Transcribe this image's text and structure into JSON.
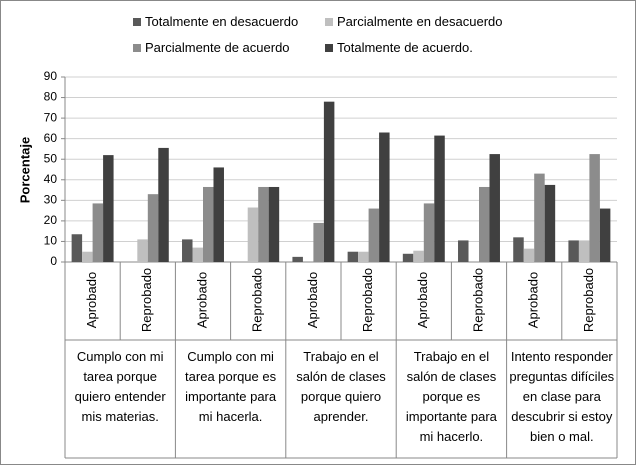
{
  "chart_data": {
    "type": "bar",
    "y_label": "Porcentaje",
    "groups": [
      {
        "label": "Cumplo con mi tarea porque quiero entender mis materias.",
        "categories": [
          "Aprobado",
          "Reprobado"
        ]
      },
      {
        "label": "Cumplo con mi tarea porque es importante para mi hacerla.",
        "categories": [
          "Aprobado",
          "Reprobado"
        ]
      },
      {
        "label": "Trabajo en el salón de clases porque quiero aprender.",
        "categories": [
          "Aprobado",
          "Reprobado"
        ]
      },
      {
        "label": "Trabajo en el salón de clases porque es importante para mi hacerlo.",
        "categories": [
          "Aprobado",
          "Reprobado"
        ]
      },
      {
        "label": "Intento responder preguntas difíciles en clase para descubrir si estoy bien o mal.",
        "categories": [
          "Aprobado",
          "Reprobado"
        ]
      }
    ],
    "series": [
      {
        "name": "Totalmente en desacuerdo",
        "color": "#595959",
        "values": [
          13.5,
          0,
          11,
          0,
          2.5,
          5,
          4,
          10.5,
          12,
          10.5
        ]
      },
      {
        "name": "Parcialmente en desacuerdo",
        "color": "#bfbfbf",
        "values": [
          5,
          11,
          7,
          26.5,
          0,
          5,
          5.5,
          0,
          6.5,
          10.5
        ]
      },
      {
        "name": "Parcialmente de acuerdo",
        "color": "#8c8c8c",
        "values": [
          28.5,
          33,
          36.5,
          36.5,
          19,
          26,
          28.5,
          36.5,
          43,
          52.5
        ]
      },
      {
        "name": "Totalmente de acuerdo.",
        "color": "#404040",
        "values": [
          52,
          55.5,
          46,
          36.5,
          78,
          63,
          61.5,
          52.5,
          37.5,
          26
        ]
      }
    ],
    "ylim": [
      0,
      90
    ],
    "yticks": [
      0,
      10,
      20,
      30,
      40,
      50,
      60,
      70,
      80,
      90
    ],
    "grid": true
  }
}
